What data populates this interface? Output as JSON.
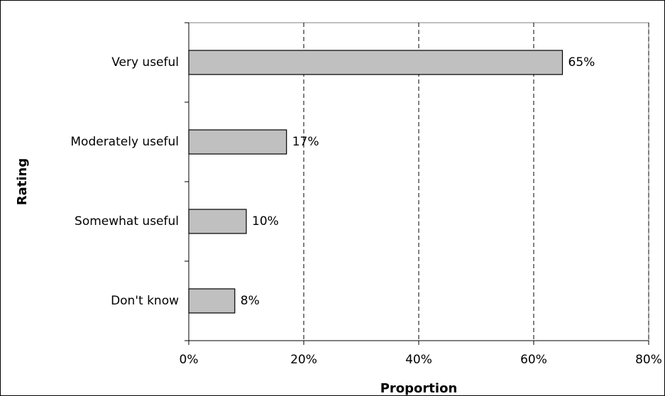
{
  "chart_data": {
    "type": "bar",
    "orientation": "horizontal",
    "x_label": "Proportion",
    "y_label": "Rating",
    "categories": [
      "Very useful",
      "Moderately useful",
      "Somewhat useful",
      "Don't know"
    ],
    "values": [
      65,
      17,
      10,
      8
    ],
    "value_labels": [
      "65%",
      "17%",
      "10%",
      "8%"
    ],
    "color": "#c0c0c0",
    "xlim": [
      0,
      80
    ],
    "xticks": [
      {
        "value": 0,
        "label": "0%"
      },
      {
        "value": 20,
        "label": "20%"
      },
      {
        "value": 40,
        "label": "40%"
      },
      {
        "value": 60,
        "label": "60%"
      },
      {
        "value": 80,
        "label": "80%"
      }
    ],
    "grid": true
  }
}
